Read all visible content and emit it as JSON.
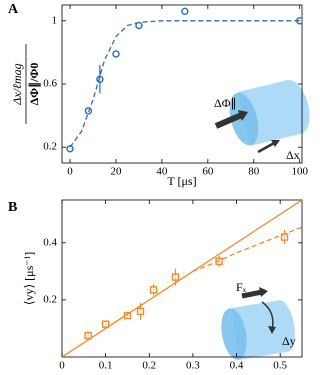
{
  "chart_data": [
    {
      "type": "scatter",
      "panel_label": "A",
      "xlabel": "T [μs]",
      "ylabel_numerator": "Δx/ℓmag",
      "ylabel_denominator": "ΔΦ∥/Φ0",
      "xlim": [
        -3.5,
        101
      ],
      "ylim": [
        0.1,
        1.1
      ],
      "xticks": [
        0,
        20,
        40,
        60,
        80,
        100
      ],
      "yticks": [
        0.2,
        0.6,
        1
      ],
      "annotations": [
        "ΔΦ∥",
        "Δx"
      ],
      "series": [
        {
          "color": "#2b6cb8",
          "marker": "circle",
          "x": [
            0,
            8,
            13,
            20,
            30,
            50,
            100
          ],
          "values": [
            0.19,
            0.43,
            0.63,
            0.79,
            0.97,
            1.06,
            1.0
          ],
          "errors": [
            null,
            null,
            0.09,
            null,
            null,
            null,
            null
          ]
        },
        {
          "color": "#2b6cb8",
          "linestyle": "dashed",
          "x": [
            0,
            5,
            10,
            15,
            20,
            25,
            30,
            40,
            60,
            80,
            100
          ],
          "values": [
            0.2,
            0.3,
            0.5,
            0.75,
            0.9,
            0.97,
            0.99,
            1.0,
            1.0,
            1.0,
            1.0
          ]
        }
      ]
    },
    {
      "type": "scatter",
      "panel_label": "B",
      "ylabel": "⟨vy⟩ [μs⁻¹]",
      "xlim": [
        0,
        0.55
      ],
      "ylim": [
        0,
        0.55
      ],
      "xticks": [
        0,
        0.1,
        0.2,
        0.3,
        0.4,
        0.5
      ],
      "yticks": [
        0.2,
        0.4
      ],
      "annotations": [
        "Fₓ",
        "Δy"
      ],
      "series": [
        {
          "color": "#ef8a2a",
          "marker": "square",
          "x": [
            0.06,
            0.1,
            0.15,
            0.18,
            0.21,
            0.26,
            0.36,
            0.51
          ],
          "values": [
            0.075,
            0.115,
            0.145,
            0.16,
            0.235,
            0.28,
            0.335,
            0.42
          ],
          "errors": [
            0.015,
            0.012,
            0.01,
            0.03,
            0.02,
            0.03,
            0.02,
            0.025
          ]
        },
        {
          "color": "#ef8a2a",
          "linestyle": "solid",
          "x": [
            0,
            0.55
          ],
          "values": [
            0,
            0.55
          ]
        },
        {
          "color": "#ef8a2a",
          "linestyle": "dashed",
          "x": [
            0.3,
            0.35,
            0.4,
            0.45,
            0.5,
            0.55
          ],
          "values": [
            0.3,
            0.33,
            0.365,
            0.395,
            0.425,
            0.455
          ]
        }
      ]
    }
  ]
}
